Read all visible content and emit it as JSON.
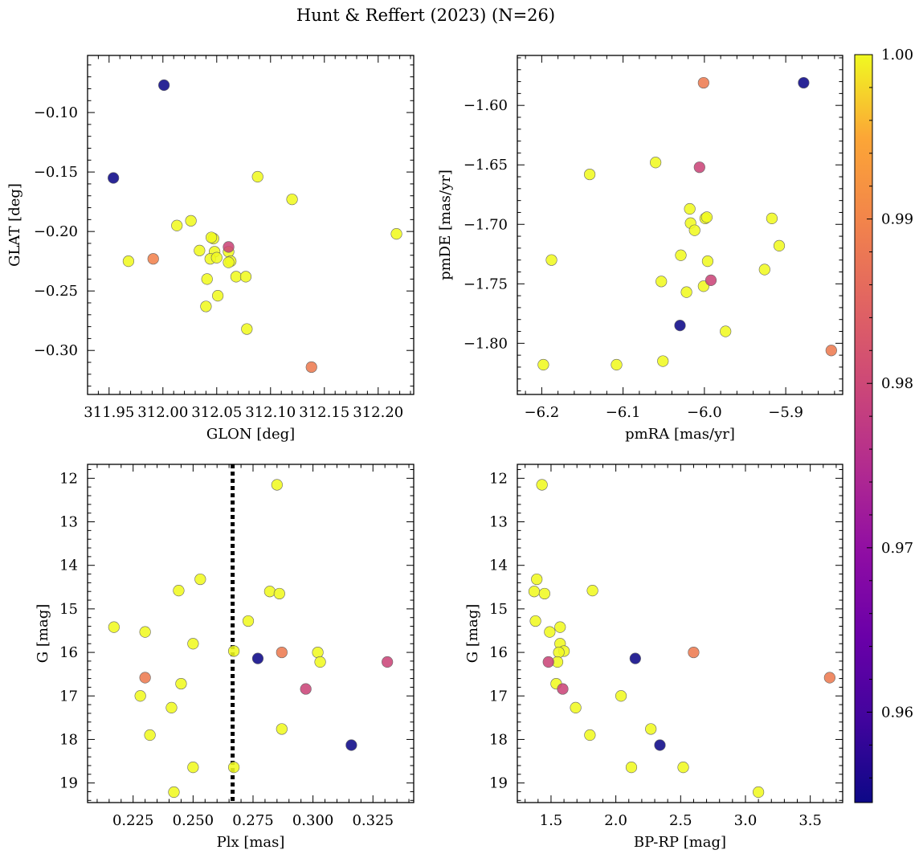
{
  "title": "Hunt & Reffert (2023) (N=26)",
  "colorbar": {
    "cmap": "plasma",
    "vmin": 0.9545,
    "vmax": 1.0,
    "ticks": [
      0.96,
      0.97,
      0.98,
      0.99,
      1.0
    ],
    "tick_labels": [
      "0.96",
      "0.97",
      "0.98",
      "0.99",
      "1.00"
    ]
  },
  "chart_data": [
    {
      "type": "scatter",
      "xlabel": "GLON [deg]",
      "ylabel": "GLAT [deg]",
      "xlim": [
        311.93,
        312.233
      ],
      "ylim": [
        -0.337,
        -0.052
      ],
      "xticks": [
        311.95,
        312.0,
        312.05,
        312.1,
        312.15,
        312.2
      ],
      "xtick_labels": [
        "311.95",
        "312.00",
        "312.05",
        "312.10",
        "312.15",
        "312.20"
      ],
      "yticks": [
        -0.1,
        -0.15,
        -0.2,
        -0.25,
        -0.3
      ],
      "ytick_labels": [
        "−0.10",
        "−0.15",
        "−0.20",
        "−0.25",
        "−0.30"
      ],
      "x": [
        312.001,
        311.954,
        312.088,
        312.026,
        312.013,
        311.968,
        311.991,
        312.047,
        312.034,
        312.048,
        312.044,
        312.061,
        312.045,
        312.05,
        312.061,
        312.063,
        312.061,
        312.068,
        312.041,
        312.051,
        312.04,
        312.077,
        312.078,
        312.138,
        312.12,
        312.217
      ],
      "y": [
        -0.077,
        -0.155,
        -0.154,
        -0.191,
        -0.195,
        -0.225,
        -0.223,
        -0.206,
        -0.216,
        -0.217,
        -0.223,
        -0.213,
        -0.205,
        -0.222,
        -0.217,
        -0.225,
        -0.226,
        -0.238,
        -0.24,
        -0.254,
        -0.263,
        -0.238,
        -0.282,
        -0.314,
        -0.173,
        -0.202
      ],
      "c": [
        0.9545,
        0.9545,
        1.0,
        1.0,
        1.0,
        1.0,
        0.9895,
        1.0,
        1.0,
        1.0,
        1.0,
        0.9795,
        1.0,
        1.0,
        1.0,
        1.0,
        1.0,
        1.0,
        1.0,
        1.0,
        1.0,
        1.0,
        1.0,
        0.9885,
        1.0,
        1.0
      ]
    },
    {
      "type": "scatter",
      "xlabel": "pmRA [mas/yr]",
      "ylabel": "pmDE [mas/yr]",
      "xlim": [
        -6.23,
        -5.83
      ],
      "ylim": [
        -1.843,
        -1.558
      ],
      "xticks": [
        -6.2,
        -6.1,
        -6.0,
        -5.9
      ],
      "xtick_labels": [
        "−6.2",
        "−6.1",
        "−6.0",
        "−5.9"
      ],
      "yticks": [
        -1.6,
        -1.65,
        -1.7,
        -1.75,
        -1.8
      ],
      "ytick_labels": [
        "−1.60",
        "−1.65",
        "−1.70",
        "−1.75",
        "−1.80"
      ],
      "x": [
        -6.001,
        -5.878,
        -6.141,
        -6.06,
        -6.006,
        -6.018,
        -6.017,
        -5.999,
        -5.997,
        -6.012,
        -5.917,
        -5.908,
        -6.188,
        -6.029,
        -5.996,
        -5.926,
        -6.053,
        -5.992,
        -6.001,
        -6.022,
        -6.03,
        -5.974,
        -6.051,
        -6.108,
        -6.198,
        -5.844
      ],
      "y": [
        -1.581,
        -1.581,
        -1.658,
        -1.648,
        -1.652,
        -1.687,
        -1.699,
        -1.695,
        -1.694,
        -1.705,
        -1.695,
        -1.718,
        -1.73,
        -1.726,
        -1.731,
        -1.738,
        -1.748,
        -1.747,
        -1.752,
        -1.757,
        -1.785,
        -1.79,
        -1.815,
        -1.818,
        -1.818,
        -1.806
      ],
      "c": [
        0.9885,
        0.9545,
        1.0,
        1.0,
        0.9795,
        1.0,
        1.0,
        1.0,
        1.0,
        1.0,
        1.0,
        1.0,
        1.0,
        1.0,
        1.0,
        1.0,
        1.0,
        0.9795,
        1.0,
        1.0,
        0.9545,
        1.0,
        1.0,
        1.0,
        1.0,
        0.9885
      ]
    },
    {
      "type": "scatter",
      "xlabel": "Plx [mas]",
      "ylabel": "G [mag]",
      "xlim": [
        0.206,
        0.342
      ],
      "ylim": [
        19.45,
        11.68
      ],
      "xticks": [
        0.225,
        0.25,
        0.275,
        0.3,
        0.325
      ],
      "xtick_labels": [
        "0.225",
        "0.250",
        "0.275",
        "0.300",
        "0.325"
      ],
      "yticks": [
        12,
        13,
        14,
        15,
        16,
        17,
        18,
        19
      ],
      "ytick_labels": [
        "12",
        "13",
        "14",
        "15",
        "16",
        "17",
        "18",
        "19"
      ],
      "vline": 0.2665,
      "x": [
        0.285,
        0.253,
        0.244,
        0.282,
        0.286,
        0.273,
        0.217,
        0.23,
        0.25,
        0.267,
        0.277,
        0.287,
        0.302,
        0.303,
        0.331,
        0.23,
        0.245,
        0.297,
        0.228,
        0.241,
        0.232,
        0.287,
        0.316,
        0.25,
        0.267,
        0.242
      ],
      "y": [
        12.15,
        14.32,
        14.58,
        14.6,
        14.65,
        15.28,
        15.42,
        15.53,
        15.8,
        15.97,
        16.14,
        16.0,
        16.0,
        16.22,
        16.22,
        16.58,
        16.72,
        16.84,
        17.0,
        17.27,
        17.9,
        17.76,
        18.13,
        18.64,
        18.64,
        19.21
      ],
      "c": [
        1.0,
        1.0,
        1.0,
        1.0,
        1.0,
        1.0,
        1.0,
        1.0,
        1.0,
        1.0,
        0.9545,
        0.9885,
        1.0,
        1.0,
        0.9795,
        0.9885,
        1.0,
        0.9795,
        1.0,
        1.0,
        1.0,
        1.0,
        0.9545,
        1.0,
        1.0,
        1.0
      ]
    },
    {
      "type": "scatter",
      "xlabel": "BP-RP [mag]",
      "ylabel": "G [mag]",
      "xlim": [
        1.24,
        3.75
      ],
      "ylim": [
        19.45,
        11.68
      ],
      "xticks": [
        1.5,
        2.0,
        2.5,
        3.0,
        3.5
      ],
      "xtick_labels": [
        "1.5",
        "2.0",
        "2.5",
        "3.0",
        "3.5"
      ],
      "yticks": [
        12,
        13,
        14,
        15,
        16,
        17,
        18,
        19
      ],
      "ytick_labels": [
        "12",
        "13",
        "14",
        "15",
        "16",
        "17",
        "18",
        "19"
      ],
      "x": [
        1.43,
        1.39,
        1.37,
        1.45,
        1.82,
        1.38,
        1.57,
        1.49,
        1.57,
        1.6,
        1.56,
        2.15,
        2.6,
        1.48,
        1.55,
        3.65,
        1.54,
        1.59,
        2.04,
        1.69,
        1.8,
        2.27,
        2.34,
        2.12,
        2.52,
        3.1
      ],
      "y": [
        12.15,
        14.32,
        14.6,
        14.65,
        14.58,
        15.28,
        15.42,
        15.53,
        15.8,
        15.97,
        16.0,
        16.14,
        16.0,
        16.22,
        16.22,
        16.58,
        16.72,
        16.84,
        17.0,
        17.27,
        17.9,
        17.76,
        18.13,
        18.64,
        18.64,
        19.21
      ],
      "c": [
        1.0,
        1.0,
        1.0,
        1.0,
        1.0,
        1.0,
        1.0,
        1.0,
        1.0,
        1.0,
        1.0,
        0.9545,
        0.9885,
        0.9795,
        1.0,
        0.9885,
        1.0,
        0.9795,
        1.0,
        1.0,
        1.0,
        1.0,
        0.9545,
        1.0,
        1.0,
        1.0
      ]
    }
  ]
}
